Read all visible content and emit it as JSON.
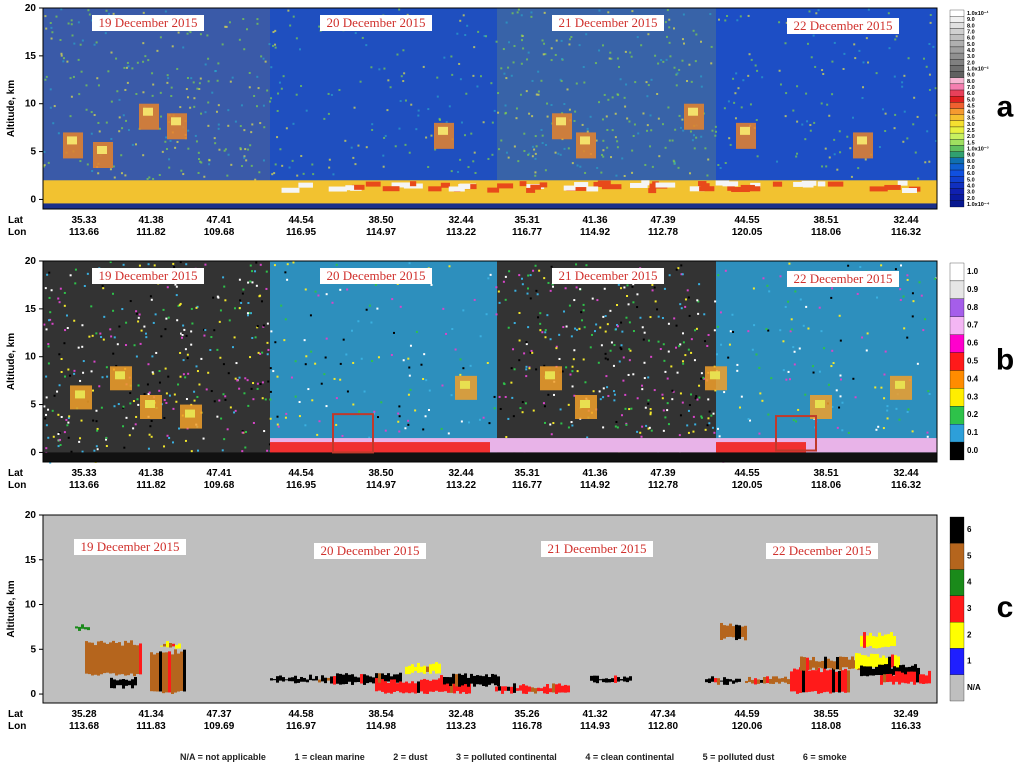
{
  "chart_data": [
    {
      "type": "heatmap",
      "panel_letter": "a",
      "ylabel": "Altitude, km",
      "yticks": [
        "0",
        "5",
        "10",
        "15",
        "20"
      ],
      "ylim": [
        -1,
        20
      ],
      "date_labels": [
        "19 December 2015",
        "20 December 2015",
        "21 December 2015",
        "22 December 2015"
      ],
      "row_labels": [
        "Lat",
        "Lon"
      ],
      "lat": [
        "35.33",
        "41.38",
        "47.41",
        "44.54",
        "38.50",
        "32.44",
        "35.31",
        "41.36",
        "47.39",
        "44.55",
        "38.51",
        "32.44"
      ],
      "lon": [
        "113.66",
        "111.82",
        "109.68",
        "116.95",
        "114.97",
        "113.22",
        "116.77",
        "114.92",
        "112.78",
        "120.05",
        "118.06",
        "116.32"
      ],
      "colorbar_labels": [
        "1.0x10⁻¹",
        "9.0",
        "8.0",
        "7.0",
        "6.0",
        "5.0",
        "4.0",
        "3.0",
        "2.0",
        "1.0x10⁻²",
        "9.0",
        "8.0",
        "7.0",
        "6.0",
        "5.0",
        "4.5",
        "4.0",
        "3.5",
        "3.0",
        "2.5",
        "2.0",
        "1.5",
        "1.0x10⁻³",
        "9.0",
        "8.0",
        "7.0",
        "6.0",
        "5.0",
        "4.0",
        "3.0",
        "2.0",
        "1.0x10⁻⁴"
      ]
    },
    {
      "type": "heatmap",
      "panel_letter": "b",
      "ylabel": "Altitude, km",
      "yticks": [
        "0",
        "5",
        "10",
        "15",
        "20"
      ],
      "ylim": [
        -1,
        20
      ],
      "date_labels": [
        "19 December 2015",
        "20 December 2015",
        "21 December 2015",
        "22 December 2015"
      ],
      "row_labels": [
        "Lat",
        "Lon"
      ],
      "lat": [
        "35.33",
        "41.38",
        "47.41",
        "44.54",
        "38.50",
        "32.44",
        "35.31",
        "41.36",
        "47.39",
        "44.55",
        "38.51",
        "32.44"
      ],
      "lon": [
        "113.66",
        "111.82",
        "109.68",
        "116.95",
        "114.97",
        "113.22",
        "116.77",
        "114.92",
        "112.78",
        "120.05",
        "118.06",
        "116.32"
      ],
      "colorbar_labels": [
        "1.0",
        "0.9",
        "0.8",
        "0.7",
        "0.6",
        "0.5",
        "0.4",
        "0.3",
        "0.2",
        "0.1",
        "0.0"
      ]
    },
    {
      "type": "heatmap",
      "panel_letter": "c",
      "ylabel": "Altitude, km",
      "yticks": [
        "0",
        "5",
        "10",
        "15",
        "20"
      ],
      "ylim": [
        -1,
        20
      ],
      "date_labels": [
        "19 December 2015",
        "20 December 2015",
        "21 December 2015",
        "22 December 2015"
      ],
      "row_labels": [
        "Lat",
        "Lon"
      ],
      "lat": [
        "35.28",
        "41.34",
        "47.37",
        "44.58",
        "38.54",
        "32.48",
        "35.26",
        "41.32",
        "47.34",
        "44.59",
        "38.55",
        "32.49"
      ],
      "lon": [
        "113.68",
        "111.83",
        "109.69",
        "116.97",
        "114.98",
        "113.23",
        "116.78",
        "114.93",
        "112.80",
        "120.06",
        "118.08",
        "116.33"
      ],
      "colorbar_labels": [
        "6",
        "5",
        "4",
        "3",
        "2",
        "1",
        "N/A"
      ],
      "legend": [
        "N/A = not applicable",
        "1 = clean marine",
        "2 = dust",
        "3 = polluted continental",
        "4 = clean continental",
        "5 = polluted dust",
        "6 = smoke"
      ]
    }
  ]
}
